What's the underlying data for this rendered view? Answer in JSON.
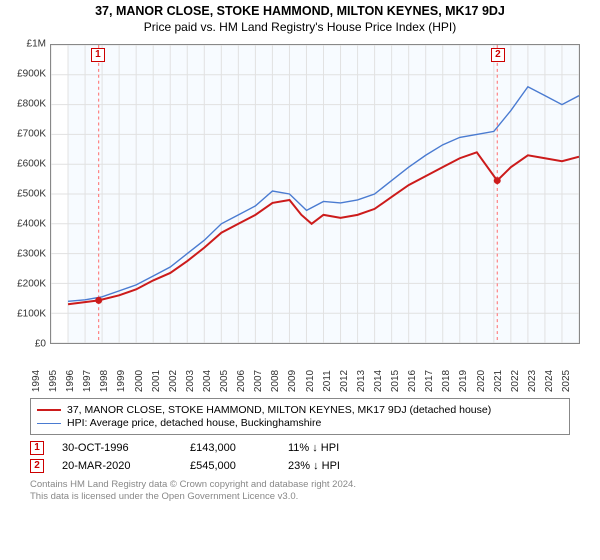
{
  "title": {
    "line1": "37, MANOR CLOSE, STOKE HAMMOND, MILTON KEYNES, MK17 9DJ",
    "line2": "Price paid vs. HM Land Registry's House Price Index (HPI)"
  },
  "chart": {
    "plot_bg": "#f7fbff",
    "axis_color": "#888888",
    "grid_color": "#e1e1e1",
    "marker_line_color": "#ff6a6a",
    "x_start_year": 1994,
    "x_end_year": 2025,
    "y_min": 0,
    "y_max": 1000000,
    "y_ticks": [
      {
        "v": 0,
        "label": "£0"
      },
      {
        "v": 100000,
        "label": "£100K"
      },
      {
        "v": 200000,
        "label": "£200K"
      },
      {
        "v": 300000,
        "label": "£300K"
      },
      {
        "v": 400000,
        "label": "£400K"
      },
      {
        "v": 500000,
        "label": "£500K"
      },
      {
        "v": 600000,
        "label": "£600K"
      },
      {
        "v": 700000,
        "label": "£700K"
      },
      {
        "v": 800000,
        "label": "£800K"
      },
      {
        "v": 900000,
        "label": "£900K"
      },
      {
        "v": 1000000,
        "label": "£1M"
      }
    ],
    "series": [
      {
        "id": "property",
        "color": "#cc1b1b",
        "width": 2,
        "label": "37, MANOR CLOSE, STOKE HAMMOND, MILTON KEYNES, MK17 9DJ (detached house)",
        "points": [
          {
            "year": 1995.0,
            "v": 130000
          },
          {
            "year": 1996.8,
            "v": 143000
          },
          {
            "year": 1998.0,
            "v": 160000
          },
          {
            "year": 1999.0,
            "v": 180000
          },
          {
            "year": 2000.0,
            "v": 210000
          },
          {
            "year": 2001.0,
            "v": 235000
          },
          {
            "year": 2002.0,
            "v": 275000
          },
          {
            "year": 2003.0,
            "v": 320000
          },
          {
            "year": 2004.0,
            "v": 370000
          },
          {
            "year": 2005.0,
            "v": 400000
          },
          {
            "year": 2006.0,
            "v": 430000
          },
          {
            "year": 2007.0,
            "v": 470000
          },
          {
            "year": 2008.0,
            "v": 480000
          },
          {
            "year": 2008.7,
            "v": 430000
          },
          {
            "year": 2009.3,
            "v": 400000
          },
          {
            "year": 2010.0,
            "v": 430000
          },
          {
            "year": 2011.0,
            "v": 420000
          },
          {
            "year": 2012.0,
            "v": 430000
          },
          {
            "year": 2013.0,
            "v": 450000
          },
          {
            "year": 2014.0,
            "v": 490000
          },
          {
            "year": 2015.0,
            "v": 530000
          },
          {
            "year": 2016.0,
            "v": 560000
          },
          {
            "year": 2017.0,
            "v": 590000
          },
          {
            "year": 2018.0,
            "v": 620000
          },
          {
            "year": 2019.0,
            "v": 640000
          },
          {
            "year": 2020.2,
            "v": 545000
          },
          {
            "year": 2021.0,
            "v": 590000
          },
          {
            "year": 2022.0,
            "v": 630000
          },
          {
            "year": 2023.0,
            "v": 620000
          },
          {
            "year": 2024.0,
            "v": 610000
          },
          {
            "year": 2025.0,
            "v": 625000
          }
        ]
      },
      {
        "id": "hpi",
        "color": "#4a7bd1",
        "width": 1.4,
        "label": "HPI: Average price, detached house, Buckinghamshire",
        "points": [
          {
            "year": 1995.0,
            "v": 140000
          },
          {
            "year": 1996.0,
            "v": 145000
          },
          {
            "year": 1997.0,
            "v": 155000
          },
          {
            "year": 1998.0,
            "v": 175000
          },
          {
            "year": 1999.0,
            "v": 195000
          },
          {
            "year": 2000.0,
            "v": 225000
          },
          {
            "year": 2001.0,
            "v": 255000
          },
          {
            "year": 2002.0,
            "v": 300000
          },
          {
            "year": 2003.0,
            "v": 345000
          },
          {
            "year": 2004.0,
            "v": 400000
          },
          {
            "year": 2005.0,
            "v": 430000
          },
          {
            "year": 2006.0,
            "v": 460000
          },
          {
            "year": 2007.0,
            "v": 510000
          },
          {
            "year": 2008.0,
            "v": 500000
          },
          {
            "year": 2009.0,
            "v": 445000
          },
          {
            "year": 2010.0,
            "v": 475000
          },
          {
            "year": 2011.0,
            "v": 470000
          },
          {
            "year": 2012.0,
            "v": 480000
          },
          {
            "year": 2013.0,
            "v": 500000
          },
          {
            "year": 2014.0,
            "v": 545000
          },
          {
            "year": 2015.0,
            "v": 590000
          },
          {
            "year": 2016.0,
            "v": 630000
          },
          {
            "year": 2017.0,
            "v": 665000
          },
          {
            "year": 2018.0,
            "v": 690000
          },
          {
            "year": 2019.0,
            "v": 700000
          },
          {
            "year": 2020.0,
            "v": 710000
          },
          {
            "year": 2021.0,
            "v": 780000
          },
          {
            "year": 2022.0,
            "v": 860000
          },
          {
            "year": 2023.0,
            "v": 830000
          },
          {
            "year": 2024.0,
            "v": 800000
          },
          {
            "year": 2025.0,
            "v": 830000
          }
        ]
      }
    ],
    "markers": [
      {
        "n": "1",
        "year": 1996.8,
        "v": 143000
      },
      {
        "n": "2",
        "year": 2020.2,
        "v": 545000
      }
    ]
  },
  "legend": {
    "items": [
      {
        "series_id": "property"
      },
      {
        "series_id": "hpi"
      }
    ]
  },
  "transactions": [
    {
      "n": "1",
      "date": "30-OCT-1996",
      "price": "£143,000",
      "diff": "11% ↓ HPI"
    },
    {
      "n": "2",
      "date": "20-MAR-2020",
      "price": "£545,000",
      "diff": "23% ↓ HPI"
    }
  ],
  "footer": {
    "line1": "Contains HM Land Registry data © Crown copyright and database right 2024.",
    "line2": "This data is licensed under the Open Government Licence v3.0."
  }
}
